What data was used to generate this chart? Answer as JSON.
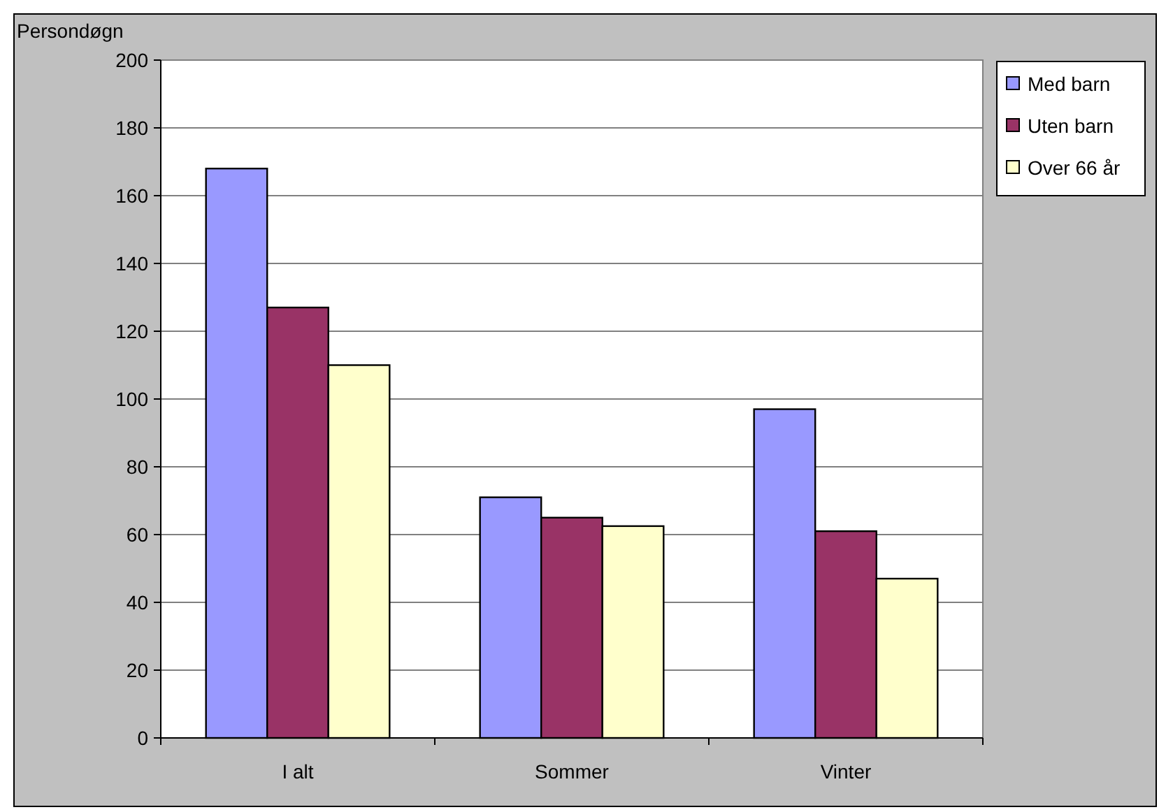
{
  "chart_data": {
    "type": "bar",
    "ylabel": "Persondøgn",
    "categories": [
      "I alt",
      "Sommer",
      "Vinter"
    ],
    "series": [
      {
        "name": "Med barn",
        "color": "#9999ff",
        "values": [
          168,
          71,
          97
        ]
      },
      {
        "name": "Uten barn",
        "color": "#993366",
        "values": [
          127,
          65,
          61
        ]
      },
      {
        "name": "Over 66 år",
        "color": "#ffffcc",
        "values": [
          110,
          62.5,
          47
        ]
      }
    ],
    "ylim": [
      0,
      200
    ],
    "yticks": [
      0,
      20,
      40,
      60,
      80,
      100,
      120,
      140,
      160,
      180,
      200
    ],
    "grid": "y",
    "legend": "right"
  }
}
